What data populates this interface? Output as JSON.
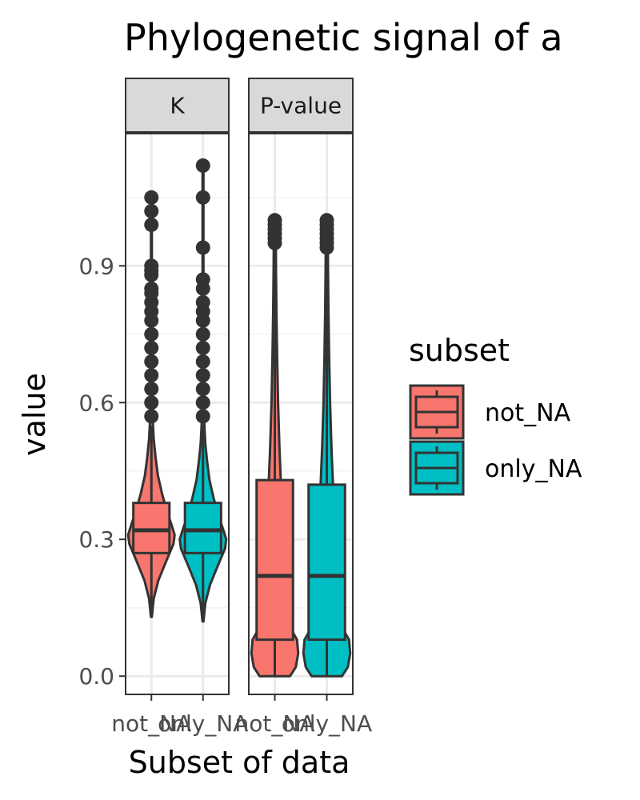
{
  "chart_data": {
    "type": "violin",
    "title": "Phylogenetic signal of a",
    "xlabel": "Subset of data",
    "ylabel": "value",
    "ylim": [
      -0.04,
      1.19
    ],
    "y_ticks": [
      0.0,
      0.3,
      0.6,
      0.9
    ],
    "y_tick_labels": [
      "0.0",
      "0.3",
      "0.6",
      "0.9"
    ],
    "grid": true,
    "legend": {
      "title": "subset",
      "position": "right",
      "entries": [
        {
          "label": "not_NA",
          "color": "#F8766D"
        },
        {
          "label": "only_NA",
          "color": "#00BFC4"
        }
      ]
    },
    "categories": [
      "not_NA",
      "only_NA"
    ],
    "panels": [
      {
        "strip": "K",
        "groups": [
          {
            "subset": "not_NA",
            "color": "#F8766D",
            "violin": [
              [
                0.13,
                0.02
              ],
              [
                0.17,
                0.1
              ],
              [
                0.21,
                0.3
              ],
              [
                0.25,
                0.62
              ],
              [
                0.29,
                0.95
              ],
              [
                0.31,
                1.0
              ],
              [
                0.33,
                0.88
              ],
              [
                0.36,
                0.68
              ],
              [
                0.4,
                0.46
              ],
              [
                0.44,
                0.28
              ],
              [
                0.48,
                0.18
              ],
              [
                0.52,
                0.1
              ],
              [
                0.56,
                0.06
              ],
              [
                0.6,
                0.04
              ],
              [
                0.7,
                0.025
              ],
              [
                0.8,
                0.02
              ],
              [
                1.05,
                0.02
              ]
            ],
            "box": {
              "whisker_low": 0.13,
              "q1": 0.27,
              "median": 0.32,
              "q3": 0.38,
              "whisker_high": 0.55
            },
            "outliers": [
              0.57,
              0.6,
              0.63,
              0.66,
              0.69,
              0.72,
              0.75,
              0.78,
              0.8,
              0.82,
              0.84,
              0.85,
              0.88,
              0.89,
              0.9,
              0.99,
              1.02,
              1.05
            ]
          },
          {
            "subset": "only_NA",
            "color": "#00BFC4",
            "violin": [
              [
                0.12,
                0.02
              ],
              [
                0.16,
                0.1
              ],
              [
                0.2,
                0.3
              ],
              [
                0.24,
                0.62
              ],
              [
                0.28,
                0.95
              ],
              [
                0.3,
                1.0
              ],
              [
                0.32,
                0.88
              ],
              [
                0.35,
                0.68
              ],
              [
                0.39,
                0.46
              ],
              [
                0.43,
                0.28
              ],
              [
                0.47,
                0.18
              ],
              [
                0.51,
                0.1
              ],
              [
                0.55,
                0.06
              ],
              [
                0.6,
                0.04
              ],
              [
                0.7,
                0.025
              ],
              [
                0.85,
                0.02
              ],
              [
                1.12,
                0.02
              ]
            ],
            "box": {
              "whisker_low": 0.12,
              "q1": 0.27,
              "median": 0.32,
              "q3": 0.38,
              "whisker_high": 0.55
            },
            "outliers": [
              0.57,
              0.6,
              0.63,
              0.66,
              0.69,
              0.72,
              0.75,
              0.78,
              0.8,
              0.82,
              0.85,
              0.87,
              0.94,
              1.05,
              1.12
            ]
          }
        ]
      },
      {
        "strip": "P-value",
        "groups": [
          {
            "subset": "not_NA",
            "color": "#F8766D",
            "violin": [
              [
                0.0,
                0.65
              ],
              [
                0.02,
                0.9
              ],
              [
                0.05,
                1.0
              ],
              [
                0.08,
                0.95
              ],
              [
                0.11,
                0.62
              ],
              [
                0.14,
                0.44
              ],
              [
                0.2,
                0.36
              ],
              [
                0.3,
                0.31
              ],
              [
                0.4,
                0.28
              ],
              [
                0.5,
                0.2
              ],
              [
                0.6,
                0.14
              ],
              [
                0.7,
                0.1
              ],
              [
                0.8,
                0.07
              ],
              [
                0.9,
                0.05
              ],
              [
                0.95,
                0.045
              ],
              [
                1.0,
                0.045
              ]
            ],
            "box": {
              "whisker_low": 0.0,
              "q1": 0.08,
              "median": 0.22,
              "q3": 0.43,
              "whisker_high": 0.94
            },
            "outliers": [
              0.95,
              0.96,
              0.97,
              0.98,
              0.99,
              1.0
            ]
          },
          {
            "subset": "only_NA",
            "color": "#00BFC4",
            "violin": [
              [
                0.0,
                0.65
              ],
              [
                0.02,
                0.9
              ],
              [
                0.05,
                1.0
              ],
              [
                0.08,
                0.95
              ],
              [
                0.11,
                0.62
              ],
              [
                0.14,
                0.44
              ],
              [
                0.2,
                0.36
              ],
              [
                0.3,
                0.31
              ],
              [
                0.4,
                0.28
              ],
              [
                0.5,
                0.2
              ],
              [
                0.6,
                0.14
              ],
              [
                0.7,
                0.1
              ],
              [
                0.8,
                0.07
              ],
              [
                0.9,
                0.05
              ],
              [
                0.95,
                0.045
              ],
              [
                1.0,
                0.045
              ]
            ],
            "box": {
              "whisker_low": 0.0,
              "q1": 0.08,
              "median": 0.22,
              "q3": 0.42,
              "whisker_high": 0.93
            },
            "outliers": [
              0.94,
              0.95,
              0.96,
              0.97,
              0.98,
              0.99,
              1.0
            ]
          }
        ]
      }
    ]
  }
}
